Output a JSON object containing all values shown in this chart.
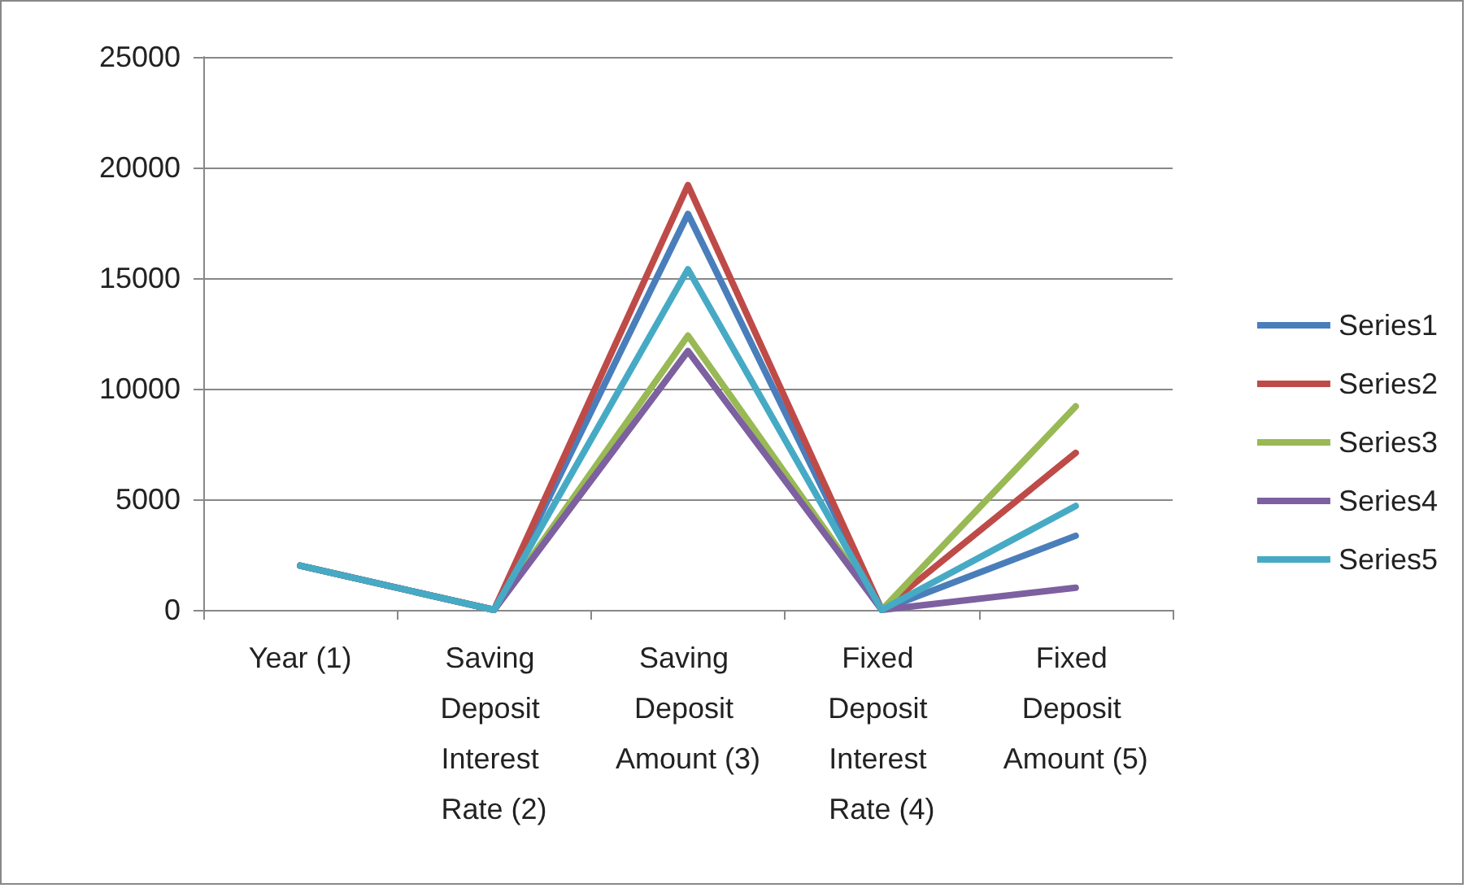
{
  "chart_data": {
    "type": "line",
    "categories": [
      "Year (1)",
      "Saving Deposit Interest Rate (2)",
      "Saving Deposit Amount (3)",
      "Fixed Deposit Interest Rate (4)",
      "Fixed Deposit Amount (5)"
    ],
    "series": [
      {
        "name": "Series1",
        "color": "#4a7ebb",
        "values": [
          2000,
          0,
          17900,
          0,
          3350
        ]
      },
      {
        "name": "Series2",
        "color": "#be4b48",
        "values": [
          2000,
          0,
          19200,
          0,
          7100
        ]
      },
      {
        "name": "Series3",
        "color": "#98b954",
        "values": [
          2000,
          0,
          12400,
          0,
          9200
        ]
      },
      {
        "name": "Series4",
        "color": "#7d60a0",
        "values": [
          2000,
          0,
          11700,
          0,
          1000
        ]
      },
      {
        "name": "Series5",
        "color": "#46aac5",
        "values": [
          2000,
          0,
          15400,
          0,
          4700
        ]
      }
    ],
    "ylim": [
      0,
      25000
    ],
    "yticks": [
      0,
      5000,
      10000,
      15000,
      20000,
      25000
    ],
    "grid": "y",
    "legend": "right",
    "marker": "none",
    "line_style": "solid"
  }
}
